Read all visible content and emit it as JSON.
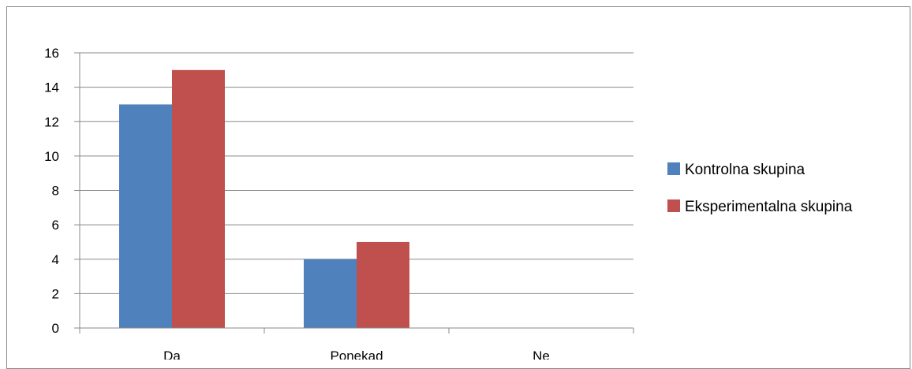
{
  "chart_data": {
    "type": "bar",
    "categories": [
      "Da",
      "Ponekad",
      "Ne"
    ],
    "series": [
      {
        "name": "Kontrolna skupina",
        "values": [
          13,
          4,
          0
        ],
        "color": "#4F81BD"
      },
      {
        "name": "Eksperimentalna skupina",
        "values": [
          15,
          5,
          0
        ],
        "color": "#C0504D"
      }
    ],
    "y_ticks": [
      "0",
      "2",
      "4",
      "6",
      "8",
      "10",
      "12",
      "14",
      "16"
    ],
    "ylim": [
      0,
      16
    ],
    "grid": true,
    "legend_position": "right"
  }
}
